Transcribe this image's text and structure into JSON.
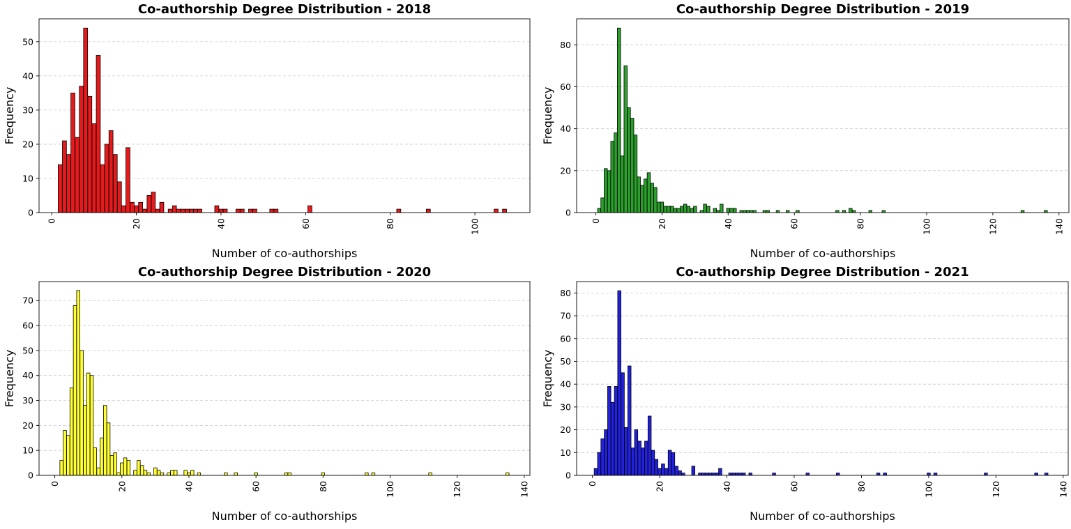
{
  "chart_data": [
    {
      "type": "bar",
      "title": "Co-authorship Degree Distribution - 2018",
      "xlabel": "Number of co-authorships",
      "ylabel": "Frequency",
      "color": "#e41a1c",
      "xlim": [
        -3,
        113
      ],
      "ylim": [
        0,
        56.7
      ],
      "xticks": [
        0,
        20,
        40,
        60,
        80,
        100
      ],
      "yticks": [
        0,
        10,
        20,
        30,
        40,
        50
      ],
      "grid": "y-dashed",
      "bin_width": 0.96,
      "x": [
        2,
        3,
        4,
        5,
        6,
        7,
        8,
        9,
        10,
        11,
        12,
        13,
        14,
        15,
        16,
        17,
        18,
        19,
        20,
        21,
        22,
        23,
        24,
        25,
        26,
        27,
        28,
        29,
        30,
        31,
        32,
        33,
        34,
        35,
        39,
        40,
        41,
        44,
        45,
        47,
        48,
        52,
        53,
        61,
        82,
        89,
        105,
        107
      ],
      "values": [
        14,
        21,
        17,
        35,
        22,
        37,
        54,
        34,
        26,
        46,
        14,
        20,
        24,
        17,
        9,
        2,
        19,
        3,
        2,
        3,
        1,
        5,
        6,
        1,
        3,
        0,
        1,
        2,
        1,
        1,
        1,
        1,
        1,
        1,
        2,
        1,
        1,
        1,
        1,
        1,
        1,
        1,
        1,
        2,
        1,
        1,
        1,
        1
      ]
    },
    {
      "type": "bar",
      "title": "Co-authorship Degree Distribution - 2019",
      "xlabel": "Number of co-authorships",
      "ylabel": "Frequency",
      "color": "#2ca02c",
      "xlim": [
        -5.8,
        143
      ],
      "ylim": [
        0,
        92.4
      ],
      "xticks": [
        0,
        20,
        40,
        60,
        80,
        100,
        120,
        140
      ],
      "yticks": [
        0,
        20,
        40,
        60,
        80
      ],
      "grid": "y-dashed",
      "bin_width": 0.96,
      "x": [
        1,
        2,
        3,
        4,
        5,
        6,
        7,
        8,
        9,
        10,
        11,
        12,
        13,
        14,
        15,
        16,
        17,
        18,
        19,
        20,
        21,
        22,
        23,
        24,
        25,
        26,
        27,
        28,
        29,
        30,
        32,
        33,
        34,
        36,
        37,
        38,
        40,
        41,
        42,
        44,
        45,
        46,
        47,
        48,
        51,
        52,
        55,
        58,
        61,
        73,
        75,
        77,
        78,
        83,
        87,
        129,
        136
      ],
      "values": [
        2,
        7,
        21,
        20,
        34,
        38,
        88,
        27,
        70,
        50,
        45,
        37,
        17,
        13,
        16,
        19,
        14,
        12,
        5,
        5,
        3,
        3,
        3,
        2,
        2,
        3,
        4,
        3,
        2,
        3,
        1,
        4,
        3,
        2,
        1,
        4,
        2,
        2,
        2,
        1,
        1,
        1,
        1,
        1,
        1,
        1,
        1,
        1,
        1,
        1,
        1,
        2,
        1,
        1,
        1,
        1,
        1
      ]
    },
    {
      "type": "bar",
      "title": "Co-authorship Degree Distribution - 2020",
      "xlabel": "Number of co-authorships",
      "ylabel": "Frequency",
      "color": "#ffff33",
      "xlim": [
        -4.7,
        141.7
      ],
      "ylim": [
        0,
        77.6
      ],
      "xticks": [
        0,
        20,
        40,
        60,
        80,
        100,
        120,
        140
      ],
      "yticks": [
        0,
        10,
        20,
        30,
        40,
        50,
        60,
        70
      ],
      "grid": "y-dashed",
      "bin_width": 0.96,
      "x": [
        2,
        3,
        4,
        5,
        6,
        7,
        8,
        9,
        10,
        11,
        12,
        13,
        14,
        15,
        16,
        17,
        18,
        19,
        20,
        21,
        22,
        24,
        25,
        26,
        27,
        28,
        30,
        31,
        32,
        34,
        35,
        36,
        39,
        40,
        41,
        43,
        51,
        54,
        60,
        69,
        70,
        80,
        93,
        95,
        112,
        135
      ],
      "values": [
        6,
        18,
        16,
        35,
        68,
        74,
        50,
        28,
        41,
        40,
        11,
        3,
        15,
        28,
        21,
        8,
        9,
        1,
        5,
        7,
        6,
        2,
        6,
        4,
        2,
        1,
        3,
        2,
        1,
        1,
        2,
        2,
        2,
        1,
        2,
        1,
        1,
        1,
        1,
        1,
        1,
        1,
        1,
        1,
        1,
        1
      ]
    },
    {
      "type": "bar",
      "title": "Co-authorship Degree Distribution - 2021",
      "xlabel": "Number of co-authorships",
      "ylabel": "Frequency",
      "color": "#2222dd",
      "xlim": [
        -4.7,
        141.5
      ],
      "ylim": [
        0,
        85
      ],
      "xticks": [
        0,
        20,
        40,
        60,
        80,
        100,
        120,
        140
      ],
      "yticks": [
        0,
        10,
        20,
        30,
        40,
        50,
        60,
        70,
        80
      ],
      "grid": "y-dashed",
      "bin_width": 0.96,
      "x": [
        1,
        2,
        3,
        4,
        5,
        6,
        7,
        8,
        9,
        10,
        11,
        12,
        13,
        14,
        15,
        16,
        17,
        18,
        19,
        20,
        21,
        22,
        23,
        24,
        25,
        26,
        27,
        30,
        32,
        33,
        34,
        35,
        36,
        37,
        38,
        41,
        42,
        43,
        44,
        45,
        47,
        54,
        64,
        73,
        85,
        87,
        100,
        102,
        117,
        132,
        135
      ],
      "values": [
        3,
        10,
        16,
        20,
        39,
        32,
        39,
        81,
        45,
        21,
        48,
        12,
        20,
        15,
        12,
        15,
        26,
        11,
        7,
        3,
        5,
        3,
        11,
        10,
        4,
        2,
        1,
        4,
        1,
        1,
        1,
        1,
        1,
        1,
        3,
        1,
        1,
        1,
        1,
        1,
        1,
        1,
        1,
        1,
        1,
        1,
        1,
        1,
        1,
        1,
        1
      ]
    }
  ]
}
